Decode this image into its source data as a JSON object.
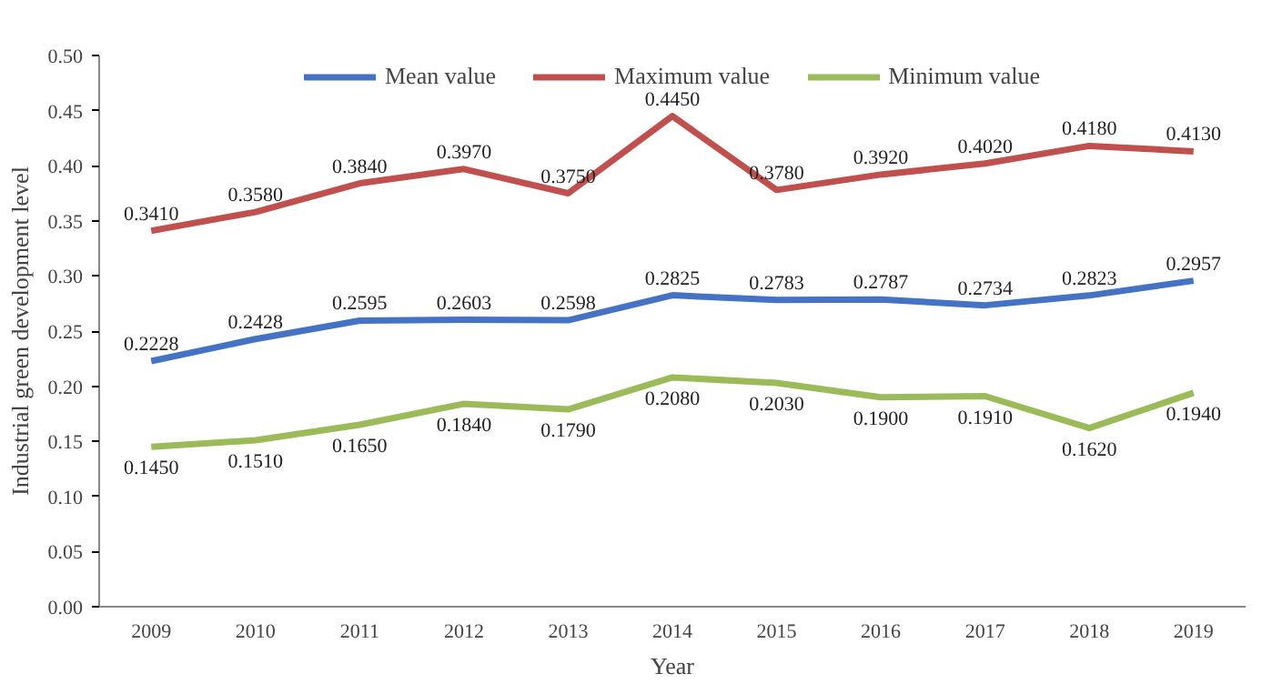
{
  "chart_data": {
    "type": "line",
    "xlabel": "Year",
    "ylabel": "Industrial green development level",
    "categories": [
      "2009",
      "2010",
      "2011",
      "2012",
      "2013",
      "2014",
      "2015",
      "2016",
      "2017",
      "2018",
      "2019"
    ],
    "series": [
      {
        "name": "Mean value",
        "color": "#4472c4",
        "values": [
          0.2228,
          0.2428,
          0.2595,
          0.2603,
          0.2598,
          0.2825,
          0.2783,
          0.2787,
          0.2734,
          0.2823,
          0.2957
        ],
        "value_labels": [
          "0.2228",
          "0.2428",
          "0.2595",
          "0.2603",
          "0.2598",
          "0.2825",
          "0.2783",
          "0.2787",
          "0.2734",
          "0.2823",
          "0.2957"
        ]
      },
      {
        "name": "Maximum value",
        "color": "#c0504d",
        "values": [
          0.341,
          0.358,
          0.384,
          0.397,
          0.375,
          0.445,
          0.378,
          0.392,
          0.402,
          0.418,
          0.413
        ],
        "value_labels": [
          "0.3410",
          "0.3580",
          "0.3840",
          "0.3970",
          "0.3750",
          "0.4450",
          "0.3780",
          "0.3920",
          "0.4020",
          "0.4180",
          "0.4130"
        ]
      },
      {
        "name": "Minimum value",
        "color": "#9bbb59",
        "values": [
          0.145,
          0.151,
          0.165,
          0.184,
          0.179,
          0.208,
          0.203,
          0.19,
          0.191,
          0.162,
          0.194
        ],
        "value_labels": [
          "0.1450",
          "0.1510",
          "0.1650",
          "0.1840",
          "0.1790",
          "0.2080",
          "0.2030",
          "0.1900",
          "0.1910",
          "0.1620",
          "0.1940"
        ]
      }
    ],
    "ylim": [
      0,
      0.5
    ],
    "yticks": [
      {
        "value": 0,
        "label": "0.00"
      },
      {
        "value": 0.05,
        "label": "0.05"
      },
      {
        "value": 0.1,
        "label": "0.10"
      },
      {
        "value": 0.15,
        "label": "0.15"
      },
      {
        "value": 0.2,
        "label": "0.20"
      },
      {
        "value": 0.25,
        "label": "0.25"
      },
      {
        "value": 0.3,
        "label": "0.30"
      },
      {
        "value": 0.35,
        "label": "0.35"
      },
      {
        "value": 0.4,
        "label": "0.40"
      },
      {
        "value": 0.45,
        "label": "0.45"
      },
      {
        "value": 0.5,
        "label": "0.50"
      }
    ],
    "grid": false,
    "legend": "top",
    "marker": "none",
    "line_style": "solid"
  }
}
